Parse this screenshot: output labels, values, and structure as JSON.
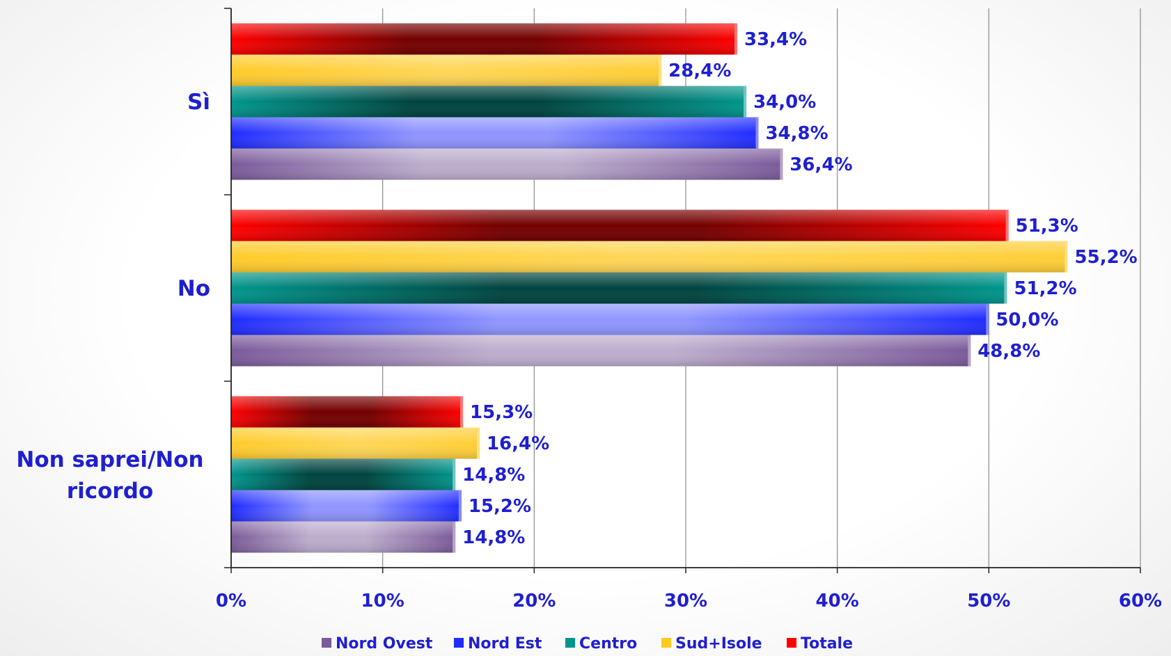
{
  "chart_data": {
    "type": "bar",
    "orientation": "horizontal",
    "categories": [
      "Sì",
      "No",
      "Non saprei/Non ricordo"
    ],
    "series": [
      {
        "name": "Nord Ovest",
        "values": [
          36.4,
          48.8,
          14.8
        ],
        "labels": [
          "36,4%",
          "48,8%",
          "14,8%"
        ],
        "color": "#7a5a9a"
      },
      {
        "name": "Nord Est",
        "values": [
          34.8,
          50.0,
          15.2
        ],
        "labels": [
          "34,8%",
          "50,0%",
          "15,2%"
        ],
        "color": "#1f2bff"
      },
      {
        "name": "Centro",
        "values": [
          34.0,
          51.2,
          14.8
        ],
        "labels": [
          "34,0%",
          "51,2%",
          "14,8%"
        ],
        "color": "#00968c"
      },
      {
        "name": "Sud+Isole",
        "values": [
          28.4,
          55.2,
          16.4
        ],
        "labels": [
          "28,4%",
          "55,2%",
          "16,4%"
        ],
        "color": "#ffc820"
      },
      {
        "name": "Totale",
        "values": [
          33.4,
          51.3,
          15.3
        ],
        "labels": [
          "33,4%",
          "51,3%",
          "15,3%"
        ],
        "color": "#ff0000"
      }
    ],
    "xlim": [
      0,
      60
    ],
    "xticks": [
      0,
      10,
      20,
      30,
      40,
      50,
      60
    ],
    "xtick_labels": [
      "0%",
      "10%",
      "20%",
      "30%",
      "40%",
      "50%",
      "60%"
    ],
    "grid": true,
    "legend_position": "bottom",
    "title": "",
    "xlabel": "",
    "ylabel": ""
  }
}
